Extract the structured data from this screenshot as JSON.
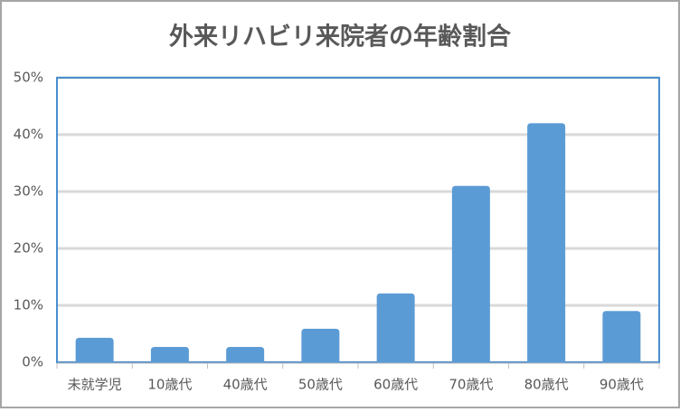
{
  "chart_data": {
    "type": "bar",
    "title": "外来リハビリ来院者の年齢割合",
    "categories": [
      "未就学児",
      "10歳代",
      "40歳代",
      "50歳代",
      "60歳代",
      "70歳代",
      "80歳代",
      "90歳代"
    ],
    "values": [
      4.3,
      2.7,
      2.7,
      5.9,
      12.1,
      31,
      42,
      9
    ],
    "color": "#5b9bd5",
    "ylim": [
      0,
      50
    ],
    "yticks": [
      {
        "value": 0,
        "label": "0%"
      },
      {
        "value": 10,
        "label": "10%"
      },
      {
        "value": 20,
        "label": "20%"
      },
      {
        "value": 30,
        "label": "30%"
      },
      {
        "value": 40,
        "label": "40%"
      },
      {
        "value": 50,
        "label": "50%"
      }
    ],
    "grid": true
  }
}
